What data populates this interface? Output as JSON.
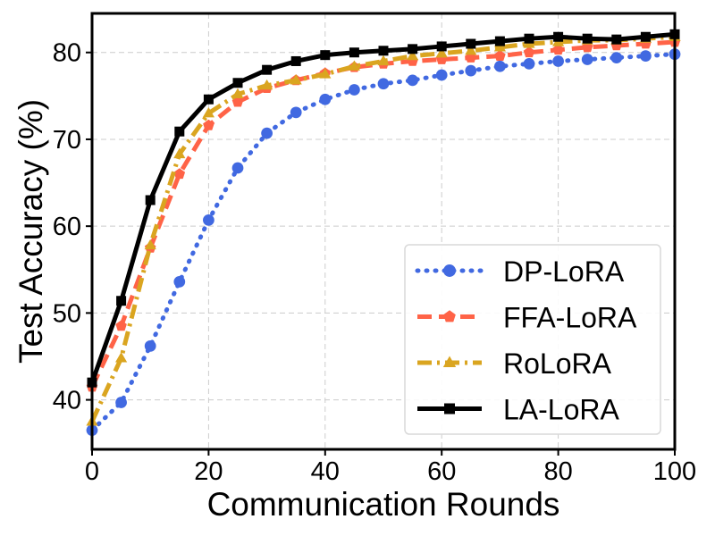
{
  "chart_data": {
    "type": "line",
    "title": "",
    "xlabel": "Communication Rounds",
    "ylabel": "Test Accuracy (%)",
    "xlim": [
      0,
      100
    ],
    "ylim": [
      34.3,
      84.5
    ],
    "xticks": [
      0,
      20,
      40,
      60,
      80,
      100
    ],
    "yticks": [
      40,
      50,
      60,
      70,
      80
    ],
    "grid": true,
    "legend_position": "lower-right",
    "x": [
      0,
      5,
      10,
      15,
      20,
      25,
      30,
      35,
      40,
      45,
      50,
      55,
      60,
      65,
      70,
      75,
      80,
      85,
      90,
      95,
      100
    ],
    "series": [
      {
        "name": "DP-LoRA",
        "color": "#4169E1",
        "line_style": "dotted",
        "marker": "circle",
        "values": [
          36.5,
          39.7,
          46.2,
          53.6,
          60.7,
          66.7,
          70.7,
          73.1,
          74.6,
          75.7,
          76.4,
          76.8,
          77.4,
          77.9,
          78.4,
          78.7,
          79.0,
          79.2,
          79.4,
          79.6,
          79.8
        ]
      },
      {
        "name": "FFA-LoRA",
        "color": "#FF6347",
        "line_style": "dashed",
        "marker": "pentagon",
        "values": [
          41.5,
          48.5,
          57.5,
          66.0,
          71.6,
          74.3,
          75.9,
          76.8,
          77.6,
          78.3,
          78.7,
          79.0,
          79.2,
          79.4,
          79.6,
          80.0,
          80.3,
          80.6,
          80.8,
          81.0,
          81.2
        ]
      },
      {
        "name": "RoLoRA",
        "color": "#DAA520",
        "line_style": "dashdot",
        "marker": "triangle",
        "values": [
          37.5,
          44.8,
          57.8,
          68.3,
          73.0,
          75.2,
          76.2,
          76.8,
          77.5,
          78.4,
          79.0,
          79.6,
          79.9,
          80.2,
          80.6,
          81.0,
          81.2,
          81.4,
          81.4,
          81.6,
          81.8
        ]
      },
      {
        "name": "LA-LoRA",
        "color": "#000000",
        "line_style": "solid",
        "marker": "square",
        "values": [
          42.0,
          51.4,
          63.0,
          70.9,
          74.6,
          76.5,
          78.0,
          79.0,
          79.7,
          80.0,
          80.2,
          80.4,
          80.7,
          81.0,
          81.3,
          81.6,
          81.8,
          81.6,
          81.5,
          81.8,
          82.1
        ]
      }
    ]
  }
}
